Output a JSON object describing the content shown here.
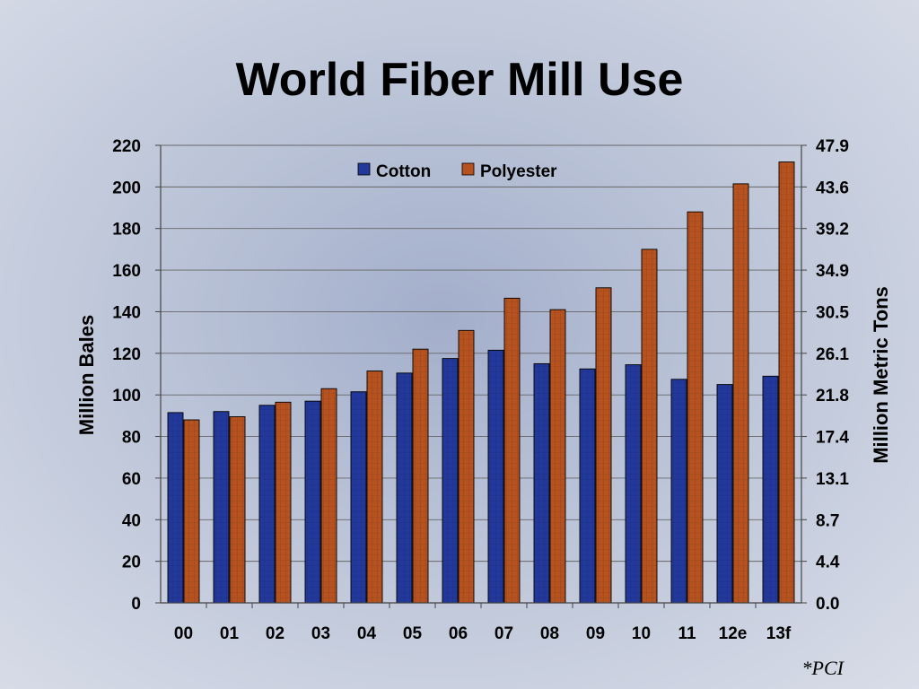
{
  "chart_data": {
    "type": "bar",
    "title": "World Fiber Mill Use",
    "ylabel": "Million Bales",
    "y2label": "Million Metric Tons",
    "categories": [
      "00",
      "01",
      "02",
      "03",
      "04",
      "05",
      "06",
      "07",
      "08",
      "09",
      "10",
      "11",
      "12e",
      "13f"
    ],
    "series": [
      {
        "name": "Cotton",
        "color": "#22389a",
        "values": [
          91.5,
          92,
          95,
          97,
          101.5,
          110.5,
          117.5,
          121.5,
          115,
          112.5,
          114.5,
          107.5,
          105,
          109
        ]
      },
      {
        "name": "Polyester",
        "color": "#b5521f",
        "values": [
          88,
          89.5,
          96.5,
          103,
          111.5,
          122,
          131,
          146.5,
          141,
          151.5,
          170,
          188,
          201.5,
          212
        ]
      }
    ],
    "ylim": [
      0,
      220
    ],
    "yticks": [
      "0",
      "20",
      "40",
      "60",
      "80",
      "100",
      "120",
      "140",
      "160",
      "180",
      "200",
      "220"
    ],
    "y2ticks": [
      "0.0",
      "4.4",
      "8.7",
      "13.1",
      "17.4",
      "21.8",
      "26.1",
      "30.5",
      "34.9",
      "39.2",
      "43.6",
      "47.9"
    ],
    "grid": true,
    "legend": "top-center",
    "source": "*PCI"
  }
}
